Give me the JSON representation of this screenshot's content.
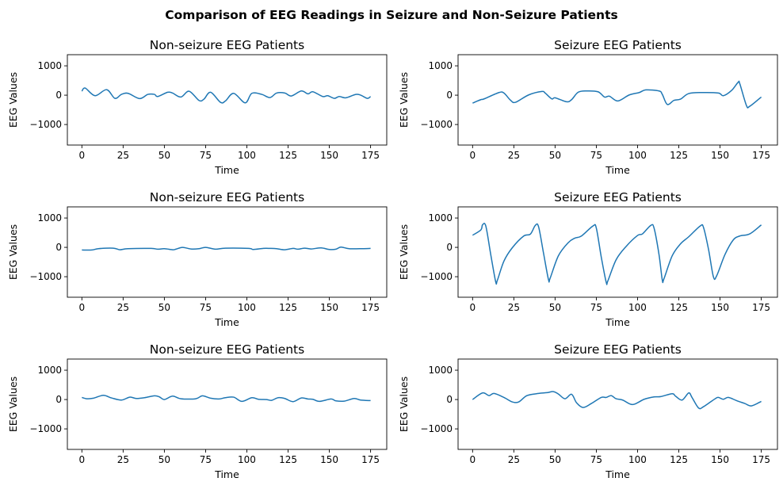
{
  "figure": {
    "title": "Comparison of EEG Readings in Seizure and Non-Seizure Patients"
  },
  "chart_data": [
    {
      "type": "line",
      "title": "Non-seizure EEG Patients",
      "xlabel": "Time",
      "ylabel": "EEG Values",
      "xlim": [
        -8.8,
        184.8
      ],
      "ylim": [
        -1700,
        1380
      ],
      "xticks": [
        0,
        25,
        50,
        75,
        100,
        125,
        150,
        175
      ],
      "yticks": [
        1000,
        0,
        -1000
      ],
      "grid": false,
      "color": "#1f77b4",
      "points": [
        [
          0,
          135
        ],
        [
          2,
          243
        ],
        [
          8,
          -18
        ],
        [
          15,
          189
        ],
        [
          20,
          -108
        ],
        [
          24,
          27
        ],
        [
          28,
          63
        ],
        [
          35,
          -117
        ],
        [
          40,
          27
        ],
        [
          44,
          27
        ],
        [
          46,
          -45
        ],
        [
          52,
          99
        ],
        [
          55,
          72
        ],
        [
          60,
          -63
        ],
        [
          65,
          135
        ],
        [
          71,
          -180
        ],
        [
          74,
          -135
        ],
        [
          78,
          99
        ],
        [
          84,
          -243
        ],
        [
          87,
          -198
        ],
        [
          92,
          63
        ],
        [
          99,
          -261
        ],
        [
          103,
          63
        ],
        [
          109,
          27
        ],
        [
          114,
          -81
        ],
        [
          118,
          72
        ],
        [
          123,
          72
        ],
        [
          127,
          -27
        ],
        [
          133,
          144
        ],
        [
          137,
          45
        ],
        [
          140,
          117
        ],
        [
          146,
          -45
        ],
        [
          149,
          -18
        ],
        [
          153,
          -108
        ],
        [
          156,
          -45
        ],
        [
          160,
          -90
        ],
        [
          166,
          27
        ],
        [
          169,
          0
        ],
        [
          173,
          -108
        ],
        [
          175,
          -45
        ]
      ]
    },
    {
      "type": "line",
      "title": "Seizure EEG Patients",
      "xlabel": "Time",
      "ylabel": "EEG Values",
      "xlim": [
        -8.8,
        184.8
      ],
      "ylim": [
        -1700,
        1380
      ],
      "xticks": [
        0,
        25,
        50,
        75,
        100,
        125,
        150,
        175
      ],
      "yticks": [
        1000,
        0,
        -1000
      ],
      "grid": false,
      "color": "#1f77b4",
      "points": [
        [
          0,
          -270
        ],
        [
          5,
          -153
        ],
        [
          7,
          -126
        ],
        [
          16,
          90
        ],
        [
          19,
          72
        ],
        [
          23,
          -171
        ],
        [
          26,
          -243
        ],
        [
          34,
          9
        ],
        [
          42,
          126
        ],
        [
          44,
          72
        ],
        [
          48,
          -126
        ],
        [
          50,
          -90
        ],
        [
          57,
          -225
        ],
        [
          60,
          -153
        ],
        [
          64,
          99
        ],
        [
          69,
          144
        ],
        [
          76,
          117
        ],
        [
          80,
          -63
        ],
        [
          83,
          -36
        ],
        [
          88,
          -198
        ],
        [
          95,
          9
        ],
        [
          101,
          90
        ],
        [
          105,
          180
        ],
        [
          113,
          144
        ],
        [
          115,
          27
        ],
        [
          118,
          -315
        ],
        [
          122,
          -180
        ],
        [
          126,
          -135
        ],
        [
          131,
          54
        ],
        [
          139,
          90
        ],
        [
          149,
          72
        ],
        [
          152,
          -18
        ],
        [
          157,
          162
        ],
        [
          161,
          441
        ],
        [
          162,
          387
        ],
        [
          166,
          -351
        ],
        [
          168,
          -378
        ],
        [
          175,
          -63
        ]
      ]
    },
    {
      "type": "line",
      "title": "Non-seizure EEG Patients",
      "xlabel": "Time",
      "ylabel": "EEG Values",
      "xlim": [
        -8.8,
        184.8
      ],
      "ylim": [
        -1700,
        1380
      ],
      "xticks": [
        0,
        25,
        50,
        75,
        100,
        125,
        150,
        175
      ],
      "yticks": [
        1000,
        0,
        -1000
      ],
      "grid": false,
      "color": "#1f77b4",
      "points": [
        [
          0,
          -90
        ],
        [
          6,
          -90
        ],
        [
          10,
          -45
        ],
        [
          19,
          -27
        ],
        [
          23,
          -81
        ],
        [
          28,
          -45
        ],
        [
          42,
          -36
        ],
        [
          46,
          -63
        ],
        [
          50,
          -45
        ],
        [
          55,
          -81
        ],
        [
          57,
          -63
        ],
        [
          61,
          0
        ],
        [
          66,
          -54
        ],
        [
          71,
          -45
        ],
        [
          75,
          0
        ],
        [
          81,
          -63
        ],
        [
          87,
          -27
        ],
        [
          101,
          -36
        ],
        [
          104,
          -72
        ],
        [
          110,
          -36
        ],
        [
          114,
          -36
        ],
        [
          118,
          -45
        ],
        [
          123,
          -81
        ],
        [
          128,
          -36
        ],
        [
          131,
          -63
        ],
        [
          135,
          -27
        ],
        [
          139,
          -54
        ],
        [
          145,
          -18
        ],
        [
          150,
          -72
        ],
        [
          154,
          -63
        ],
        [
          157,
          9
        ],
        [
          162,
          -45
        ],
        [
          170,
          -45
        ],
        [
          175,
          -36
        ]
      ]
    },
    {
      "type": "line",
      "title": "Seizure EEG Patients",
      "xlabel": "Time",
      "ylabel": "EEG Values",
      "xlim": [
        -8.8,
        184.8
      ],
      "ylim": [
        -1700,
        1380
      ],
      "xticks": [
        0,
        25,
        50,
        75,
        100,
        125,
        150,
        175
      ],
      "yticks": [
        1000,
        0,
        -1000
      ],
      "grid": false,
      "color": "#1f77b4",
      "points": [
        [
          0,
          414
        ],
        [
          5,
          594
        ],
        [
          6,
          765
        ],
        [
          8,
          729
        ],
        [
          11,
          -243
        ],
        [
          14,
          -1170
        ],
        [
          15,
          -1125
        ],
        [
          19,
          -468
        ],
        [
          24,
          -18
        ],
        [
          31,
          387
        ],
        [
          35,
          450
        ],
        [
          38,
          747
        ],
        [
          40,
          702
        ],
        [
          43,
          -198
        ],
        [
          46,
          -1098
        ],
        [
          47,
          -1053
        ],
        [
          52,
          -288
        ],
        [
          58,
          162
        ],
        [
          62,
          315
        ],
        [
          66,
          387
        ],
        [
          73,
          729
        ],
        [
          75,
          657
        ],
        [
          78,
          -333
        ],
        [
          81,
          -1188
        ],
        [
          82,
          -1143
        ],
        [
          87,
          -423
        ],
        [
          93,
          27
        ],
        [
          100,
          405
        ],
        [
          103,
          459
        ],
        [
          108,
          747
        ],
        [
          110,
          657
        ],
        [
          113,
          -243
        ],
        [
          115,
          -1116
        ],
        [
          116,
          -1071
        ],
        [
          121,
          -288
        ],
        [
          126,
          117
        ],
        [
          131,
          360
        ],
        [
          138,
          729
        ],
        [
          140,
          675
        ],
        [
          143,
          -63
        ],
        [
          146,
          -1008
        ],
        [
          148,
          -963
        ],
        [
          153,
          -243
        ],
        [
          158,
          252
        ],
        [
          162,
          387
        ],
        [
          168,
          459
        ],
        [
          175,
          765
        ]
      ]
    },
    {
      "type": "line",
      "title": "Non-seizure EEG Patients",
      "xlabel": "Time",
      "ylabel": "EEG Values",
      "xlim": [
        -8.8,
        184.8
      ],
      "ylim": [
        -1700,
        1380
      ],
      "xticks": [
        0,
        25,
        50,
        75,
        100,
        125,
        150,
        175
      ],
      "yticks": [
        1000,
        0,
        -1000
      ],
      "grid": false,
      "color": "#1f77b4",
      "points": [
        [
          0,
          72
        ],
        [
          3,
          27
        ],
        [
          7,
          45
        ],
        [
          13,
          144
        ],
        [
          18,
          54
        ],
        [
          24,
          -18
        ],
        [
          29,
          81
        ],
        [
          33,
          36
        ],
        [
          38,
          63
        ],
        [
          44,
          126
        ],
        [
          47,
          90
        ],
        [
          50,
          0
        ],
        [
          55,
          117
        ],
        [
          60,
          27
        ],
        [
          69,
          27
        ],
        [
          73,
          126
        ],
        [
          78,
          45
        ],
        [
          83,
          18
        ],
        [
          87,
          63
        ],
        [
          92,
          81
        ],
        [
          97,
          -63
        ],
        [
          103,
          63
        ],
        [
          107,
          9
        ],
        [
          112,
          0
        ],
        [
          115,
          -27
        ],
        [
          119,
          63
        ],
        [
          123,
          36
        ],
        [
          128,
          -72
        ],
        [
          133,
          54
        ],
        [
          137,
          18
        ],
        [
          140,
          9
        ],
        [
          144,
          -63
        ],
        [
          151,
          18
        ],
        [
          154,
          -45
        ],
        [
          159,
          -54
        ],
        [
          165,
          36
        ],
        [
          169,
          -18
        ],
        [
          175,
          -36
        ]
      ]
    },
    {
      "type": "line",
      "title": "Seizure EEG Patients",
      "xlabel": "Time",
      "ylabel": "EEG Values",
      "xlim": [
        -8.8,
        184.8
      ],
      "ylim": [
        -1700,
        1380
      ],
      "xticks": [
        0,
        25,
        50,
        75,
        100,
        125,
        150,
        175
      ],
      "yticks": [
        1000,
        0,
        -1000
      ],
      "grid": false,
      "color": "#1f77b4",
      "points": [
        [
          0,
          0
        ],
        [
          6,
          225
        ],
        [
          10,
          135
        ],
        [
          13,
          207
        ],
        [
          19,
          72
        ],
        [
          24,
          -81
        ],
        [
          28,
          -81
        ],
        [
          33,
          135
        ],
        [
          40,
          207
        ],
        [
          45,
          234
        ],
        [
          49,
          270
        ],
        [
          52,
          189
        ],
        [
          56,
          27
        ],
        [
          60,
          180
        ],
        [
          63,
          -108
        ],
        [
          67,
          -270
        ],
        [
          72,
          -135
        ],
        [
          78,
          72
        ],
        [
          81,
          72
        ],
        [
          84,
          135
        ],
        [
          87,
          27
        ],
        [
          91,
          -18
        ],
        [
          97,
          -171
        ],
        [
          104,
          9
        ],
        [
          110,
          90
        ],
        [
          114,
          99
        ],
        [
          121,
          198
        ],
        [
          123,
          117
        ],
        [
          127,
          -18
        ],
        [
          131,
          225
        ],
        [
          133,
          72
        ],
        [
          137,
          -288
        ],
        [
          140,
          -243
        ],
        [
          147,
          27
        ],
        [
          149,
          72
        ],
        [
          152,
          9
        ],
        [
          155,
          72
        ],
        [
          160,
          -36
        ],
        [
          165,
          -135
        ],
        [
          169,
          -216
        ],
        [
          175,
          -63
        ]
      ]
    }
  ]
}
